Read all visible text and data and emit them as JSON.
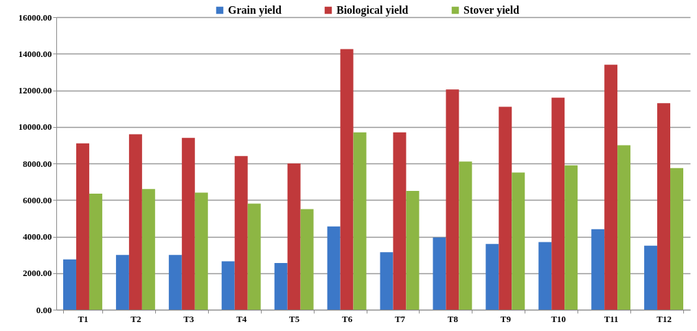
{
  "chart_data": {
    "type": "bar",
    "categories": [
      "T1",
      "T2",
      "T3",
      "T4",
      "T5",
      "T6",
      "T7",
      "T8",
      "T9",
      "T10",
      "T11",
      "T12"
    ],
    "series": [
      {
        "name": "Grain yield",
        "color": "#3c78c8",
        "values": [
          2750,
          3000,
          3000,
          2650,
          2550,
          4550,
          3150,
          3950,
          3600,
          3700,
          4400,
          3500
        ]
      },
      {
        "name": "Biological yield",
        "color": "#c0393b",
        "values": [
          9100,
          9600,
          9400,
          8400,
          8000,
          14250,
          9700,
          12050,
          11100,
          11600,
          13400,
          11300
        ]
      },
      {
        "name": "Stover yield",
        "color": "#8db644",
        "values": [
          6350,
          6600,
          6400,
          5800,
          5500,
          9700,
          6500,
          8100,
          7500,
          7900,
          9000,
          7750
        ]
      }
    ],
    "ylim": [
      0,
      16000
    ],
    "yticks": [
      {
        "value": 0,
        "label": "0.00"
      },
      {
        "value": 2000,
        "label": "2000.00"
      },
      {
        "value": 4000,
        "label": "4000.00"
      },
      {
        "value": 6000,
        "label": "6000.00"
      },
      {
        "value": 8000,
        "label": "8000.00"
      },
      {
        "value": 10000,
        "label": "10000.00"
      },
      {
        "value": 12000,
        "label": "12000.00"
      },
      {
        "value": 14000,
        "label": "14000.00"
      },
      {
        "value": 16000,
        "label": "16000.00"
      }
    ],
    "grid": "y",
    "legend": "top"
  }
}
